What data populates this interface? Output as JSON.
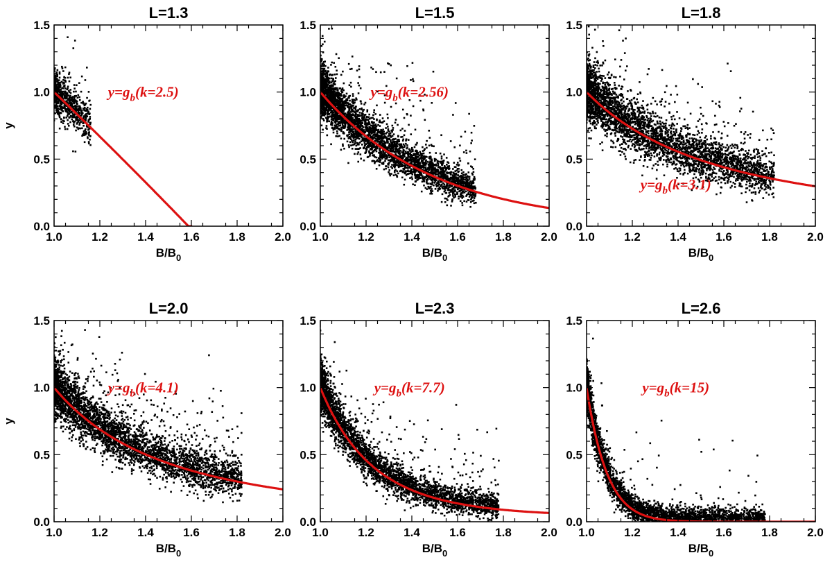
{
  "colors": {
    "points": "#000000",
    "fit": "#dd1111"
  },
  "chart_data": [
    {
      "type": "scatter",
      "title": "L=1.3",
      "xlabel": "B/B",
      "xlabel_sub": "0",
      "ylabel": "y",
      "xlim": [
        1.0,
        2.0
      ],
      "ylim": [
        0.0,
        1.5
      ],
      "xticks": [
        "1.0",
        "1.2",
        "1.4",
        "1.6",
        "1.8",
        "2.0"
      ],
      "yticks": [
        "0.0",
        "0.5",
        "1.0",
        "1.5"
      ],
      "fit": {
        "k": 2.5,
        "label_prefix": "y=g",
        "label_sub": "b",
        "label_suffix": "(k=2.5)",
        "label_at": [
          1.39,
          1.0
        ],
        "x_end": 1.6,
        "shape": "parabola"
      },
      "scatter_cloud": {
        "x_range": [
          1.0,
          1.16
        ],
        "spread": 0.06,
        "center": "fit",
        "approx_points": 700,
        "outliers": 20
      }
    },
    {
      "type": "scatter",
      "title": "L=1.5",
      "xlabel": "B/B",
      "xlabel_sub": "0",
      "ylabel": "",
      "xlim": [
        1.0,
        2.0
      ],
      "ylim": [
        0.0,
        1.5
      ],
      "xticks": [
        "1.0",
        "1.2",
        "1.4",
        "1.6",
        "1.8",
        "2.0"
      ],
      "yticks": [
        "0.0",
        "0.5",
        "1.0",
        "1.5"
      ],
      "fit": {
        "k": 2.56,
        "label_prefix": "y=g",
        "label_sub": "b",
        "label_suffix": "(k=2.56)",
        "label_at": [
          1.39,
          1.0
        ],
        "x_end": 2.0,
        "shape": "exp"
      },
      "scatter_cloud": {
        "x_range": [
          1.0,
          1.68
        ],
        "spread": 0.07,
        "center": "fit",
        "approx_points": 3500,
        "outliers": 180
      }
    },
    {
      "type": "scatter",
      "title": "L=1.8",
      "xlabel": "B/B",
      "xlabel_sub": "0",
      "ylabel": "",
      "xlim": [
        1.0,
        2.0
      ],
      "ylim": [
        0.0,
        1.5
      ],
      "xticks": [
        "1.0",
        "1.2",
        "1.4",
        "1.6",
        "1.8",
        "2.0"
      ],
      "yticks": [
        "0.0",
        "0.5",
        "1.0",
        "1.5"
      ],
      "fit": {
        "k": 3.1,
        "label_prefix": "y=g",
        "label_sub": "b",
        "label_suffix": "(k=3.1)",
        "label_at": [
          1.39,
          0.31
        ],
        "x_end": 2.0,
        "shape": "power"
      },
      "scatter_cloud": {
        "x_range": [
          1.0,
          1.82
        ],
        "spread": 0.08,
        "center": "fit",
        "approx_points": 3500,
        "outliers": 220
      }
    },
    {
      "type": "scatter",
      "title": "L=2.0",
      "xlabel": "B/B",
      "xlabel_sub": "0",
      "ylabel": "y",
      "xlim": [
        1.0,
        2.0
      ],
      "ylim": [
        0.0,
        1.5
      ],
      "xticks": [
        "1.0",
        "1.2",
        "1.4",
        "1.6",
        "1.8",
        "2.0"
      ],
      "yticks": [
        "0.0",
        "0.5",
        "1.0",
        "1.5"
      ],
      "fit": {
        "k": 4.1,
        "label_prefix": "y=g",
        "label_sub": "b",
        "label_suffix": "(k=4.1)",
        "label_at": [
          1.39,
          1.0
        ],
        "x_end": 2.0,
        "shape": "power"
      },
      "scatter_cloud": {
        "x_range": [
          1.0,
          1.82
        ],
        "spread": 0.08,
        "center": "fit",
        "approx_points": 3500,
        "outliers": 250
      }
    },
    {
      "type": "scatter",
      "title": "L=2.3",
      "xlabel": "B/B",
      "xlabel_sub": "0",
      "ylabel": "",
      "xlim": [
        1.0,
        2.0
      ],
      "ylim": [
        0.0,
        1.5
      ],
      "xticks": [
        "1.0",
        "1.2",
        "1.4",
        "1.6",
        "1.8",
        "2.0"
      ],
      "yticks": [
        "0.0",
        "0.5",
        "1.0",
        "1.5"
      ],
      "fit": {
        "k": 7.7,
        "label_prefix": "y=g",
        "label_sub": "b",
        "label_suffix": "(k=7.7)",
        "label_at": [
          1.39,
          1.0
        ],
        "x_end": 2.0,
        "shape": "power"
      },
      "scatter_cloud": {
        "x_range": [
          1.0,
          1.78
        ],
        "spread": 0.07,
        "center": "fit",
        "approx_points": 3500,
        "outliers": 160
      }
    },
    {
      "type": "scatter",
      "title": "L=2.6",
      "xlabel": "B/B",
      "xlabel_sub": "0",
      "ylabel": "",
      "xlim": [
        1.0,
        2.0
      ],
      "ylim": [
        0.0,
        1.5
      ],
      "xticks": [
        "1.0",
        "1.2",
        "1.4",
        "1.6",
        "1.8",
        "2.0"
      ],
      "yticks": [
        "0.0",
        "0.5",
        "1.0",
        "1.5"
      ],
      "fit": {
        "k": 15,
        "label_prefix": "y=g",
        "label_sub": "b",
        "label_suffix": "(k=15)",
        "label_at": [
          1.39,
          1.0
        ],
        "x_end": 2.0,
        "shape": "power"
      },
      "scatter_cloud": {
        "x_range": [
          1.0,
          1.78
        ],
        "spread": 0.07,
        "center": "fit",
        "approx_points": 3500,
        "outliers": 60
      }
    }
  ]
}
